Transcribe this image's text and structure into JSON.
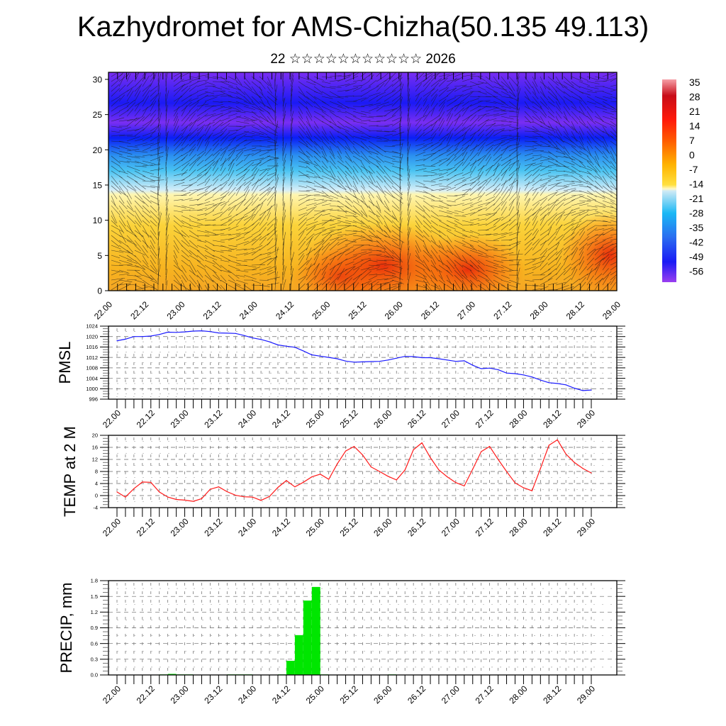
{
  "header": {
    "title": "Kazhydromet for AMS-Chizha(50.135 49.113)",
    "subtitle": "22 ☆☆☆☆☆☆☆☆☆☆☆ 2026"
  },
  "colors": {
    "pmsl_line": "#1a1aff",
    "temp_line": "#ff1a1a",
    "precip_bar": "#00e600",
    "frame": "#000000"
  },
  "chart_data": [
    {
      "type": "heatmap",
      "name": "vertical-section",
      "title": "",
      "xlabel": "",
      "ylabel": "",
      "x_tick_labels": [
        "22.00",
        "22.12",
        "23.00",
        "23.12",
        "24.00",
        "24.12",
        "25.00",
        "25.12",
        "26.00",
        "26.12",
        "27.00",
        "27.12",
        "28.00",
        "28.12",
        "29.00"
      ],
      "y_tick_labels": [
        "0",
        "5",
        "10",
        "15",
        "20",
        "25",
        "30"
      ],
      "ylim": [
        0,
        31
      ],
      "overlay": "wind streamlines/vectors",
      "colorbar": {
        "labels": [
          "35",
          "28",
          "21",
          "14",
          "7",
          "0",
          "-7",
          "-14",
          "-21",
          "-28",
          "-35",
          "-42",
          "-49",
          "-56"
        ],
        "range": [
          -60,
          38
        ],
        "placement": "right"
      }
    },
    {
      "type": "line",
      "name": "pmsl",
      "ylabel": "PMSL",
      "ylim": [
        996,
        1024
      ],
      "y_tick_labels": [
        "1024",
        "1020",
        "1016",
        "1012",
        "1008",
        "1004",
        "1000",
        "996"
      ],
      "x_tick_labels": [
        "22.00",
        "22.12",
        "23.00",
        "23.12",
        "24.00",
        "24.12",
        "25.00",
        "25.12",
        "26.00",
        "26.12",
        "27.00",
        "27.12",
        "28.00",
        "28.12",
        "29.00"
      ],
      "x_step_hours": 3,
      "grid": true,
      "values": [
        1018.4,
        1019.0,
        1020.0,
        1020.0,
        1020.2,
        1020.8,
        1021.7,
        1021.6,
        1021.8,
        1022.1,
        1022.2,
        1021.9,
        1021.4,
        1021.3,
        1021.2,
        1020.4,
        1019.5,
        1018.9,
        1018.0,
        1016.8,
        1016.3,
        1015.9,
        1014.5,
        1013.0,
        1012.5,
        1012.0,
        1011.5,
        1010.6,
        1010.2,
        1010.3,
        1010.4,
        1010.5,
        1011.0,
        1011.7,
        1012.4,
        1012.3,
        1011.9,
        1011.9,
        1011.5,
        1011.0,
        1010.5,
        1010.7,
        1009.0,
        1007.7,
        1007.9,
        1007.3,
        1006.0,
        1005.8,
        1005.3,
        1004.5,
        1003.3,
        1002.3,
        1002.0,
        1001.5,
        1000.2,
        999.3,
        999.5
      ]
    },
    {
      "type": "line",
      "name": "temp",
      "ylabel": "TEMP at 2 M",
      "ylim": [
        -4,
        20
      ],
      "y_tick_labels": [
        "20",
        "16",
        "12",
        "8",
        "4",
        "0",
        "-4"
      ],
      "x_tick_labels": [
        "22.00",
        "22.12",
        "23.00",
        "23.12",
        "24.00",
        "24.12",
        "25.00",
        "25.12",
        "26.00",
        "26.12",
        "27.00",
        "27.12",
        "28.00",
        "28.12",
        "29.00"
      ],
      "x_step_hours": 3,
      "grid": true,
      "values": [
        1.2,
        -0.5,
        2.3,
        4.5,
        4.4,
        1.2,
        -0.5,
        -1.3,
        -1.5,
        -1.9,
        -1.0,
        2.1,
        2.9,
        1.3,
        0.1,
        -0.4,
        -0.5,
        -1.6,
        -0.3,
        2.7,
        5.0,
        2.9,
        4.4,
        6.2,
        7.1,
        5.4,
        10.5,
        14.8,
        16.3,
        13.5,
        9.5,
        8.0,
        6.4,
        5.2,
        8.5,
        15.2,
        17.5,
        12.6,
        8.5,
        6.2,
        4.3,
        3.2,
        8.8,
        14.6,
        16.3,
        12.0,
        8.0,
        4.2,
        2.6,
        1.6,
        9.0,
        16.7,
        18.5,
        13.8,
        11.0,
        9.0,
        7.5
      ]
    },
    {
      "type": "bar",
      "name": "precip",
      "ylabel": "PRECIP, mm",
      "ylim": [
        0,
        1.8
      ],
      "y_tick_labels": [
        "1.8",
        "1.5",
        "1.2",
        "0.9",
        "0.6",
        "0.3",
        "0.0"
      ],
      "x_tick_labels": [
        "22.00",
        "22.12",
        "23.00",
        "23.12",
        "24.00",
        "24.12",
        "25.00",
        "25.12",
        "26.00",
        "26.12",
        "27.00",
        "27.12",
        "28.00",
        "28.12",
        "29.00"
      ],
      "x_step_hours": 3,
      "grid": true,
      "values": [
        0,
        0,
        0,
        0,
        0,
        0,
        0.01,
        0.02,
        0.01,
        0.01,
        0,
        0,
        0,
        0,
        0.01,
        0.01,
        0.01,
        0,
        0,
        0,
        0.01,
        0.27,
        0.76,
        1.42,
        1.68,
        0.01,
        0,
        0,
        0,
        0,
        0,
        0,
        0,
        0.01,
        0,
        0,
        0,
        0,
        0,
        0,
        0,
        0,
        0,
        0,
        0,
        0,
        0,
        0,
        0,
        0,
        0,
        0,
        0,
        0,
        0,
        0,
        0
      ]
    }
  ]
}
